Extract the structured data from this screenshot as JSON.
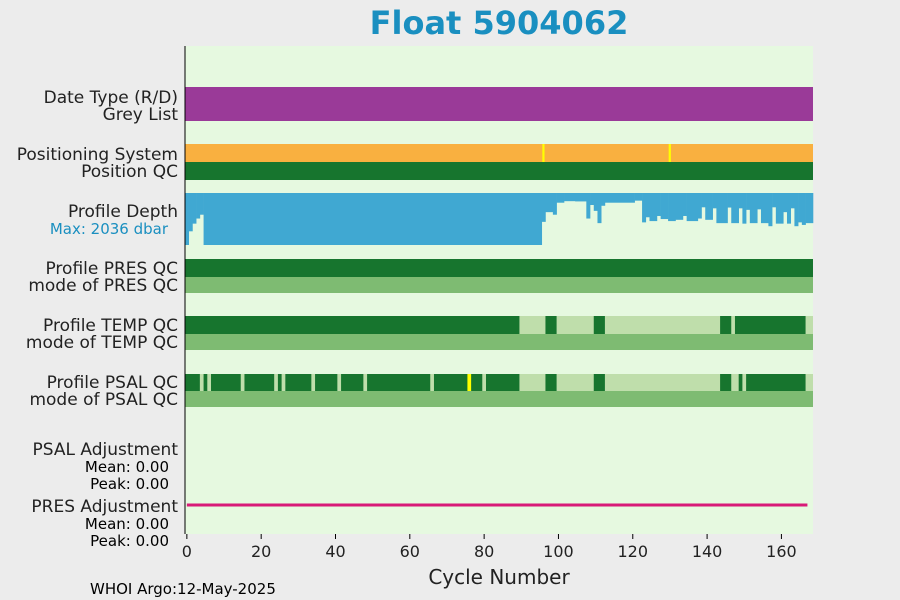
{
  "chart_data": {
    "type": "bar",
    "title": "Float 5904062",
    "xlabel": "Cycle Number",
    "xlim": [
      -0.5,
      168.5
    ],
    "xticks": [
      0,
      20,
      40,
      60,
      80,
      100,
      120,
      140,
      160
    ],
    "footer": "WHOI Argo:12-May-2025",
    "colors": {
      "title": "#1a8fc0",
      "plot_bg": "#e6f9e0",
      "date_type": "#9a3a98",
      "positioning": "#f9b040",
      "pos_marker": "#ffff00",
      "qc_good": "#17752e",
      "qc_mode": "#7ebb72",
      "qc_light": "#bfdeab",
      "qc_flag": "#ffff00",
      "depth": "#40a8d2",
      "max_depth_label": "#1a8fc0",
      "pres_adjust": "#d81b78"
    },
    "rows": {
      "date_type": "Date Type (R/D)",
      "grey_list": "Grey List",
      "positioning": "Positioning System",
      "position_qc": "Position QC",
      "profile_depth": "Profile Depth",
      "max_depth": "Max: 2036 dbar",
      "pres_qc": "Profile PRES QC",
      "pres_mode": "mode of PRES QC",
      "temp_qc": "Profile TEMP QC",
      "temp_mode": "mode of TEMP QC",
      "psal_qc": "Profile PSAL QC",
      "psal_mode": "mode of PSAL QC",
      "psal_adj": "PSAL Adjustment",
      "psal_mean": "Mean: 0.00",
      "psal_peak": "Peak: 0.00",
      "pres_adj": "PRES Adjustment",
      "pres_mean": "Mean: 0.00",
      "pres_peak": "Peak: 0.00"
    },
    "positioning_markers": [
      96,
      130
    ],
    "temp_qc_light_ranges": [
      [
        90,
        96
      ],
      [
        100,
        109
      ],
      [
        113,
        143
      ],
      [
        147,
        147
      ],
      [
        167,
        168
      ]
    ],
    "psal_qc_light_ranges": [
      [
        4,
        4
      ],
      [
        6,
        6
      ],
      [
        15,
        15
      ],
      [
        24,
        24
      ],
      [
        26,
        26
      ],
      [
        34,
        34
      ],
      [
        41,
        41
      ],
      [
        48,
        48
      ],
      [
        66,
        66
      ],
      [
        80,
        80
      ],
      [
        90,
        96
      ],
      [
        100,
        109
      ],
      [
        113,
        143
      ],
      [
        147,
        148
      ],
      [
        150,
        150
      ],
      [
        167,
        168
      ]
    ],
    "psal_qc_flags": [
      76
    ],
    "depth_max": 2036,
    "depth_segments": [
      {
        "from": 0,
        "to": 0,
        "value": 2036
      },
      {
        "from": 1,
        "to": 1,
        "value": 1500
      },
      {
        "from": 2,
        "to": 2,
        "value": 1200
      },
      {
        "from": 3,
        "to": 3,
        "value": 1000
      },
      {
        "from": 4,
        "to": 4,
        "value": 850
      },
      {
        "from": 5,
        "to": 95,
        "value": 2036
      },
      {
        "from": 96,
        "to": 96,
        "value": 1130
      },
      {
        "from": 97,
        "to": 98,
        "value": 750
      },
      {
        "from": 99,
        "to": 99,
        "value": 850
      },
      {
        "from": 100,
        "to": 101,
        "value": 380
      },
      {
        "from": 102,
        "to": 104,
        "value": 320
      },
      {
        "from": 105,
        "to": 107,
        "value": 330
      },
      {
        "from": 108,
        "to": 108,
        "value": 1000
      },
      {
        "from": 109,
        "to": 109,
        "value": 470
      },
      {
        "from": 110,
        "to": 110,
        "value": 700
      },
      {
        "from": 111,
        "to": 111,
        "value": 1180
      },
      {
        "from": 112,
        "to": 112,
        "value": 500
      },
      {
        "from": 113,
        "to": 120,
        "value": 380
      },
      {
        "from": 121,
        "to": 122,
        "value": 300
      },
      {
        "from": 123,
        "to": 123,
        "value": 1150
      },
      {
        "from": 124,
        "to": 124,
        "value": 950
      },
      {
        "from": 125,
        "to": 126,
        "value": 1100
      },
      {
        "from": 127,
        "to": 127,
        "value": 900
      },
      {
        "from": 128,
        "to": 129,
        "value": 1020
      },
      {
        "from": 130,
        "to": 131,
        "value": 1100
      },
      {
        "from": 132,
        "to": 133,
        "value": 1050
      },
      {
        "from": 134,
        "to": 134,
        "value": 900
      },
      {
        "from": 135,
        "to": 137,
        "value": 1100
      },
      {
        "from": 138,
        "to": 138,
        "value": 1000
      },
      {
        "from": 139,
        "to": 139,
        "value": 560
      },
      {
        "from": 140,
        "to": 141,
        "value": 1050
      },
      {
        "from": 142,
        "to": 142,
        "value": 600
      },
      {
        "from": 143,
        "to": 145,
        "value": 1180
      },
      {
        "from": 146,
        "to": 146,
        "value": 570
      },
      {
        "from": 147,
        "to": 148,
        "value": 1180
      },
      {
        "from": 149,
        "to": 149,
        "value": 600
      },
      {
        "from": 150,
        "to": 150,
        "value": 1200
      },
      {
        "from": 151,
        "to": 151,
        "value": 660
      },
      {
        "from": 152,
        "to": 153,
        "value": 1180
      },
      {
        "from": 154,
        "to": 154,
        "value": 640
      },
      {
        "from": 155,
        "to": 156,
        "value": 1180
      },
      {
        "from": 157,
        "to": 157,
        "value": 1300
      },
      {
        "from": 158,
        "to": 158,
        "value": 560
      },
      {
        "from": 159,
        "to": 160,
        "value": 1200
      },
      {
        "from": 161,
        "to": 161,
        "value": 750
      },
      {
        "from": 162,
        "to": 162,
        "value": 1200
      },
      {
        "from": 163,
        "to": 163,
        "value": 600
      },
      {
        "from": 164,
        "to": 164,
        "value": 1300
      },
      {
        "from": 165,
        "to": 165,
        "value": 1150
      },
      {
        "from": 166,
        "to": 166,
        "value": 1250
      },
      {
        "from": 167,
        "to": 168,
        "value": 1180
      }
    ]
  }
}
